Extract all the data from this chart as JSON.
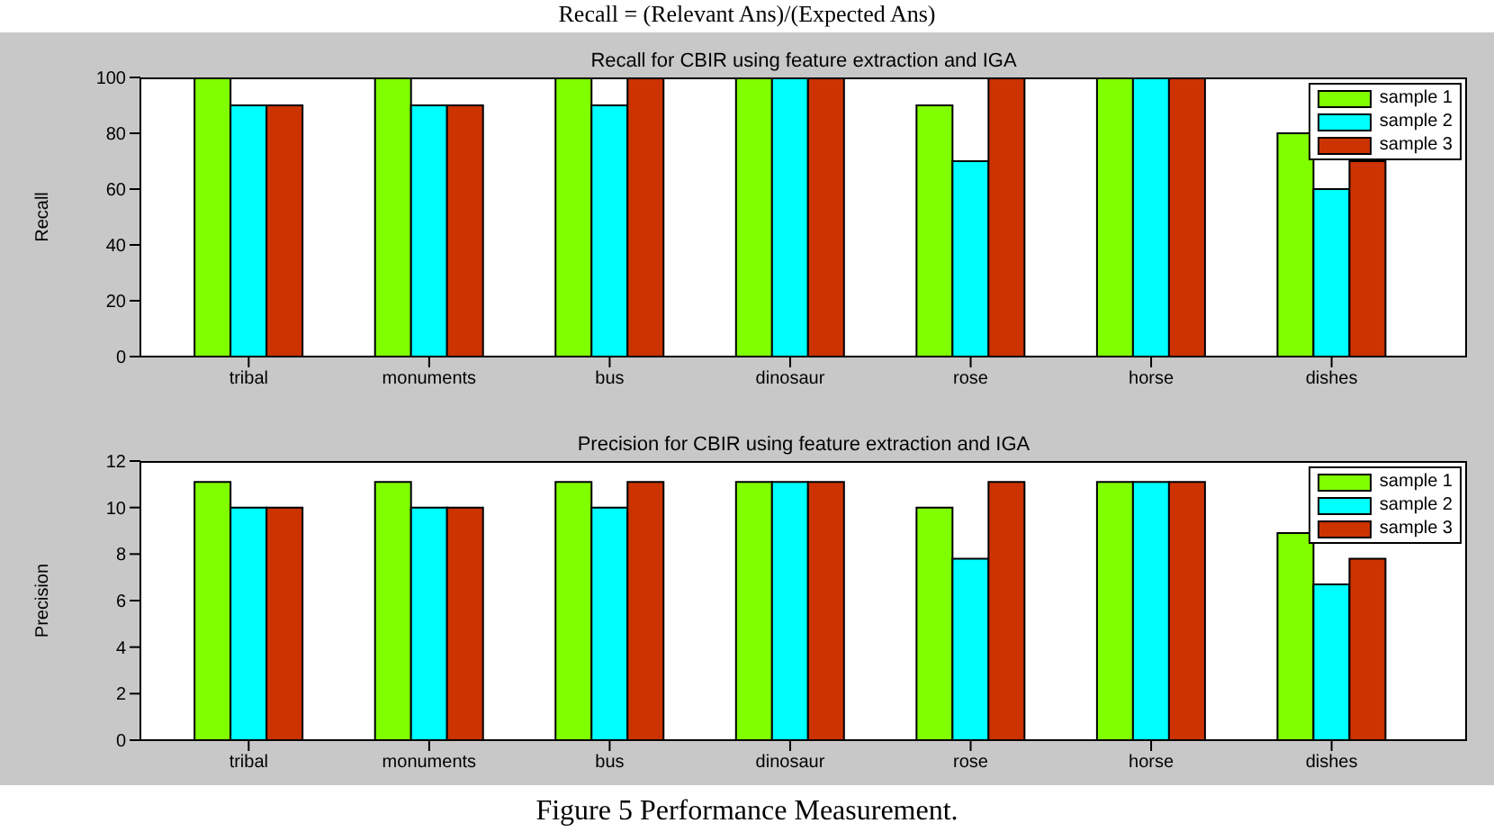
{
  "chart_data": [
    {
      "type": "bar",
      "title": "Recall for CBIR using feature extraction and IGA",
      "ylabel": "Recall",
      "annotations": [
        "Recall = (Relevant Ans)/(Expected Ans)"
      ],
      "categories": [
        "tribal",
        "monuments",
        "bus",
        "dinosaur",
        "rose",
        "horse",
        "dishes"
      ],
      "series": [
        {
          "name": "sample 1",
          "color": "#80ff00",
          "values": [
            100,
            100,
            100,
            100,
            90,
            100,
            80
          ]
        },
        {
          "name": "sample 2",
          "color": "#00ffff",
          "values": [
            90,
            90,
            90,
            100,
            70,
            100,
            60
          ]
        },
        {
          "name": "sample 3",
          "color": "#cc3300",
          "values": [
            90,
            90,
            100,
            100,
            100,
            100,
            70
          ]
        }
      ],
      "ylim": [
        0,
        100
      ],
      "yticks": [
        0,
        20,
        40,
        60,
        80,
        100
      ],
      "grid": false,
      "legend": "top right"
    },
    {
      "type": "bar",
      "title": "Precision for CBIR using feature extraction and IGA",
      "ylabel": "Precision",
      "annotations": [
        "Figure 5 Performance Measurement."
      ],
      "categories": [
        "tribal",
        "monuments",
        "bus",
        "dinosaur",
        "rose",
        "horse",
        "dishes"
      ],
      "series": [
        {
          "name": "sample 1",
          "color": "#80ff00",
          "values": [
            11.1,
            11.1,
            11.1,
            11.1,
            10,
            11.1,
            8.9
          ]
        },
        {
          "name": "sample 2",
          "color": "#00ffff",
          "values": [
            10,
            10,
            10,
            11.1,
            7.8,
            11.1,
            6.7
          ]
        },
        {
          "name": "sample 3",
          "color": "#cc3300",
          "values": [
            10,
            10,
            11.1,
            11.1,
            11.1,
            11.1,
            7.8
          ]
        }
      ],
      "ylim": [
        0,
        12
      ],
      "yticks": [
        0,
        2,
        4,
        6,
        8,
        10,
        12
      ],
      "grid": false,
      "legend": "top right"
    }
  ]
}
